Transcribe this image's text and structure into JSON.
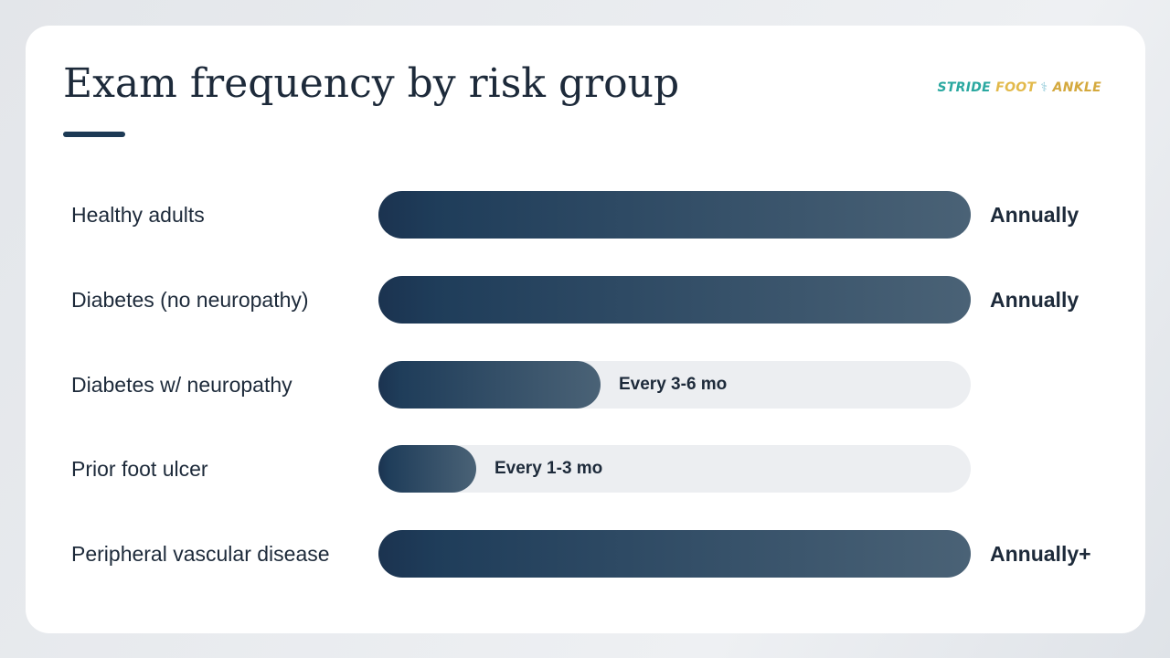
{
  "slide": {
    "title": "Exam frequency by risk group"
  },
  "brand": {
    "part1": "STRIDE",
    "part2": "FOOT",
    "part3": "⚕",
    "part4": "ANKLE",
    "colors": {
      "stride": "#2aa8a0",
      "foot": "#e2b94a",
      "ankle": "#d4a93e"
    }
  },
  "colors": {
    "bar_start": "#1b3350",
    "bar_end": "#4a6276",
    "track": "#eceef1",
    "text": "#1d2a3a",
    "accent_rule": "#1d3a55"
  },
  "chart_data": {
    "type": "bar",
    "orientation": "horizontal",
    "title": "Exam frequency by risk group",
    "xlabel": "",
    "ylabel": "",
    "categories": [
      "Healthy adults",
      "Diabetes (no neuropathy)",
      "Diabetes w/ neuropathy",
      "Prior foot ulcer",
      "Peripheral vascular disease"
    ],
    "values": [
      1.0,
      1.0,
      0.375,
      0.165,
      1.0
    ],
    "value_labels": [
      "Annually",
      "Annually",
      "Every 3-6 mo",
      "Every 1-3 mo",
      "Annually+"
    ],
    "xlim": [
      0,
      1
    ],
    "grid": false,
    "legend": "none"
  }
}
